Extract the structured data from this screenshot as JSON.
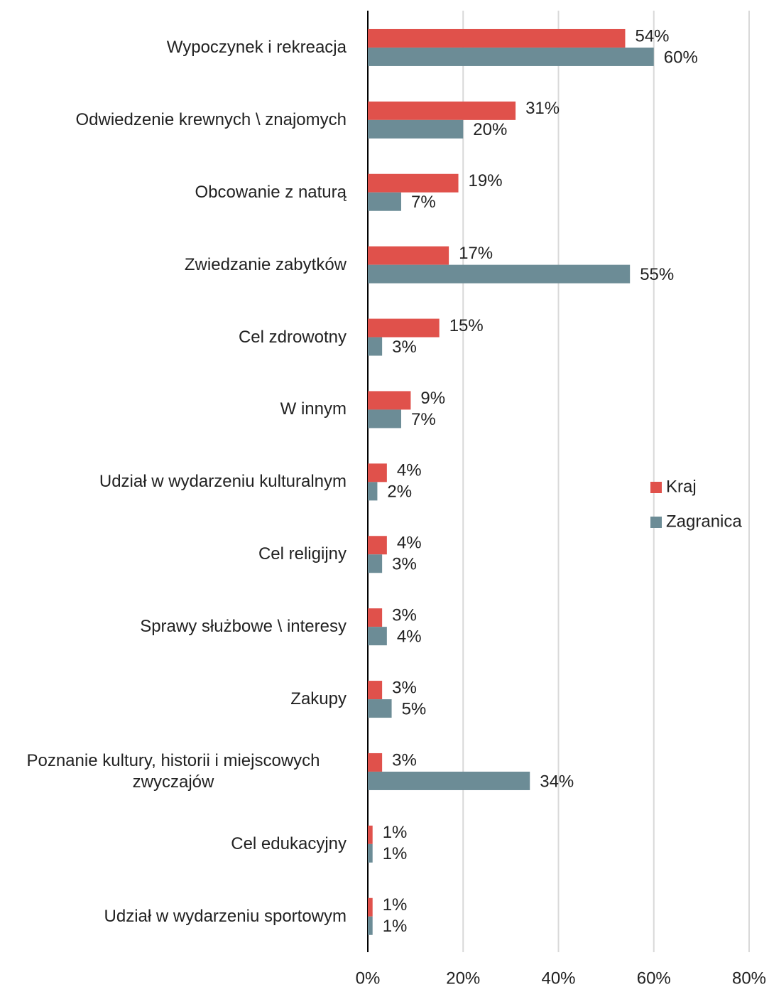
{
  "chart_data": {
    "type": "hbar",
    "categories": [
      "Wypoczynek i rekreacja",
      "Odwiedzenie krewnych \\ znajomych",
      "Obcowanie z naturą",
      "Zwiedzanie zabytków",
      "Cel zdrowotny",
      "W innym",
      "Udział w wydarzeniu kulturalnym",
      "Cel religijny",
      "Sprawy służbowe \\ interesy",
      "Zakupy",
      "Poznanie kultury, historii i miejscowych zwyczajów",
      "Cel edukacyjny",
      "Udział w wydarzeniu sportowym"
    ],
    "series": [
      {
        "name": "Kraj",
        "color": "#e0514b",
        "values": [
          54,
          31,
          19,
          17,
          15,
          9,
          4,
          4,
          3,
          3,
          3,
          1,
          1
        ],
        "value_labels": [
          "54%",
          "31%",
          "19%",
          "17%",
          "15%",
          "9%",
          "4%",
          "4%",
          "3%",
          "3%",
          "3%",
          "1%",
          "1%"
        ]
      },
      {
        "name": "Zagranica",
        "color": "#6c8c96",
        "values": [
          60,
          20,
          7,
          55,
          3,
          7,
          2,
          3,
          4,
          5,
          34,
          1,
          1
        ],
        "value_labels": [
          "60%",
          "20%",
          "7%",
          "55%",
          "3%",
          "7%",
          "2%",
          "3%",
          "4%",
          "5%",
          "34%",
          "1%",
          "1%"
        ]
      }
    ],
    "xlim": [
      0,
      80
    ],
    "xticks": [
      {
        "value": 0,
        "label": "0%"
      },
      {
        "value": 20,
        "label": "20%"
      },
      {
        "value": 40,
        "label": "40%"
      },
      {
        "value": 60,
        "label": "60%"
      },
      {
        "value": 80,
        "label": "80%"
      }
    ],
    "grid": true,
    "legend": "right"
  }
}
